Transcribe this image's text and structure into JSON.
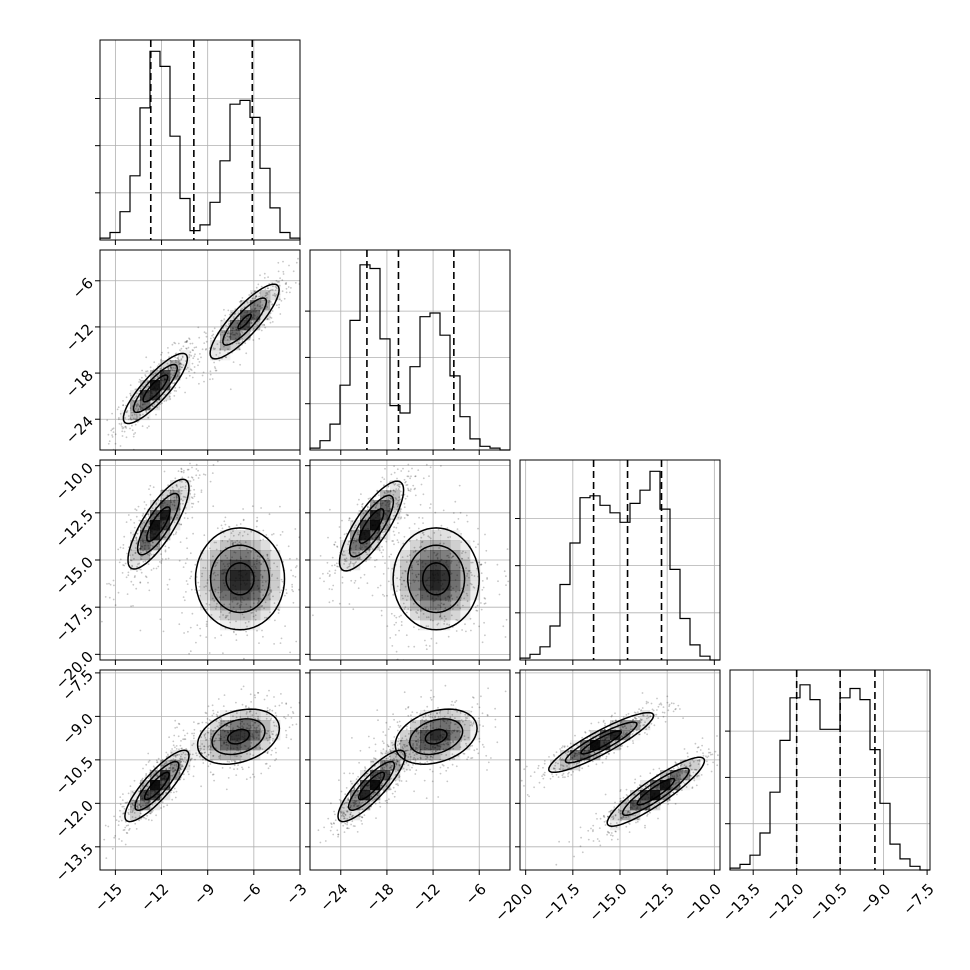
{
  "chart_data": {
    "type": "corner",
    "parameters": 4,
    "grid": true,
    "quantile_lines": "dashed",
    "colors": {
      "line": "#000000",
      "grid": "#b0b0b0",
      "density": "#000000"
    },
    "axes": [
      {
        "range": [
          -16,
          -3
        ],
        "ticks": [
          "−15",
          "−12",
          "−9",
          "−6",
          "−3"
        ],
        "tick_values": [
          -15,
          -12,
          -9,
          -6,
          -3
        ]
      },
      {
        "range": [
          -28,
          -2
        ],
        "ticks": [
          "−24",
          "−18",
          "−12",
          "−6"
        ],
        "tick_values": [
          -24,
          -18,
          -12,
          -6
        ]
      },
      {
        "range": [
          -20.3,
          -9.7
        ],
        "ticks": [
          "−20.0",
          "−17.5",
          "−15.0",
          "−12.5",
          "−10.0"
        ],
        "tick_values": [
          -20,
          -17.5,
          -15,
          -12.5,
          -10
        ]
      },
      {
        "range": [
          -14.3,
          -7.4
        ],
        "ticks": [
          "−13.5",
          "−12.0",
          "−10.5",
          "−9.0",
          "−7.5"
        ],
        "tick_values": [
          -13.5,
          -12,
          -10.5,
          -9,
          -7.5
        ]
      }
    ],
    "histograms": [
      {
        "param": 0,
        "bin_edges": [
          -16,
          -15.35,
          -14.7,
          -14.05,
          -13.4,
          -12.75,
          -12.1,
          -11.45,
          -10.8,
          -10.15,
          -9.5,
          -8.85,
          -8.2,
          -7.55,
          -6.9,
          -6.25,
          -5.6,
          -4.95,
          -4.3,
          -3.65,
          -3
        ],
        "counts": [
          1,
          4,
          15,
          34,
          70,
          100,
          92,
          55,
          22,
          5,
          8,
          20,
          42,
          72,
          74,
          65,
          38,
          17,
          4,
          1
        ],
        "ymax": 106,
        "quantiles": [
          -12.7,
          -9.9,
          -6.1
        ]
      },
      {
        "param": 1,
        "bin_edges": [
          -28,
          -26.7,
          -25.4,
          -24.1,
          -22.8,
          -21.5,
          -20.2,
          -18.9,
          -17.6,
          -16.3,
          -15,
          -13.7,
          -12.4,
          -11.1,
          -9.8,
          -8.5,
          -7.2,
          -5.9,
          -4.6,
          -3.3,
          -2
        ],
        "counts": [
          1,
          5,
          14,
          35,
          70,
          100,
          98,
          60,
          24,
          20,
          45,
          72,
          74,
          62,
          40,
          18,
          6,
          2,
          1,
          0
        ],
        "ymax": 108,
        "quantiles": [
          -20.6,
          -16.5,
          -9.3
        ]
      },
      {
        "param": 2,
        "bin_edges": [
          -20.3,
          -19.77,
          -19.24,
          -18.71,
          -18.18,
          -17.65,
          -17.12,
          -16.59,
          -16.06,
          -15.53,
          -15,
          -14.47,
          -13.94,
          -13.41,
          -12.88,
          -12.35,
          -11.82,
          -11.29,
          -10.76,
          -10.23,
          -9.7
        ],
        "counts": [
          1,
          3,
          7,
          18,
          40,
          62,
          86,
          87,
          82,
          78,
          73,
          83,
          90,
          100,
          80,
          48,
          22,
          8,
          2,
          0
        ],
        "ymax": 106,
        "quantiles": [
          -16.4,
          -14.6,
          -12.8
        ]
      },
      {
        "param": 3,
        "bin_edges": [
          -14.3,
          -13.955,
          -13.61,
          -13.265,
          -12.92,
          -12.575,
          -12.23,
          -11.885,
          -11.54,
          -11.195,
          -10.85,
          -10.505,
          -10.16,
          -9.815,
          -9.47,
          -9.125,
          -8.78,
          -8.435,
          -8.09,
          -7.745,
          -7.4
        ],
        "counts": [
          1,
          3,
          8,
          20,
          42,
          70,
          93,
          100,
          92,
          76,
          76,
          93,
          98,
          92,
          65,
          36,
          14,
          6,
          2,
          0
        ],
        "ymax": 108,
        "quantiles": [
          -12.0,
          -10.5,
          -9.3
        ]
      }
    ],
    "pairs": [
      {
        "x_param": 0,
        "y_param": 1,
        "modes": [
          {
            "cx": -12.4,
            "cy": -20.0,
            "sx": 1.05,
            "sy": 2.3,
            "rho": 0.85,
            "weight": 1.0
          },
          {
            "cx": -6.6,
            "cy": -11.3,
            "sx": 1.2,
            "sy": 2.6,
            "rho": 0.85,
            "weight": 0.8
          }
        ]
      },
      {
        "x_param": 0,
        "y_param": 2,
        "modes": [
          {
            "cx": -12.2,
            "cy": -13.1,
            "sx": 1.0,
            "sy": 1.2,
            "rho": 0.8,
            "weight": 1.0
          },
          {
            "cx": -6.9,
            "cy": -16.0,
            "sx": 1.5,
            "sy": 1.4,
            "rho": 0.0,
            "weight": 0.9
          }
        ]
      },
      {
        "x_param": 1,
        "y_param": 2,
        "modes": [
          {
            "cx": -20.0,
            "cy": -13.2,
            "sx": 2.1,
            "sy": 1.2,
            "rho": 0.8,
            "weight": 1.0
          },
          {
            "cx": -11.6,
            "cy": -16.0,
            "sx": 2.9,
            "sy": 1.4,
            "rho": 0.0,
            "weight": 0.9
          }
        ]
      },
      {
        "x_param": 0,
        "y_param": 3,
        "modes": [
          {
            "cx": -12.3,
            "cy": -11.4,
            "sx": 1.05,
            "sy": 0.62,
            "rho": 0.85,
            "weight": 1.0
          },
          {
            "cx": -7.0,
            "cy": -9.7,
            "sx": 1.4,
            "sy": 0.5,
            "rho": 0.3,
            "weight": 0.85
          }
        ]
      },
      {
        "x_param": 1,
        "y_param": 3,
        "modes": [
          {
            "cx": -20.0,
            "cy": -11.4,
            "sx": 2.2,
            "sy": 0.62,
            "rho": 0.85,
            "weight": 1.0
          },
          {
            "cx": -11.6,
            "cy": -9.7,
            "sx": 2.8,
            "sy": 0.5,
            "rho": 0.3,
            "weight": 0.85
          }
        ]
      },
      {
        "x_param": 2,
        "y_param": 3,
        "modes": [
          {
            "cx": -16.0,
            "cy": -9.9,
            "sx": 1.4,
            "sy": 0.52,
            "rho": 0.9,
            "weight": 1.0
          },
          {
            "cx": -13.1,
            "cy": -11.6,
            "sx": 1.3,
            "sy": 0.6,
            "rho": 0.9,
            "weight": 1.0
          }
        ]
      }
    ]
  }
}
